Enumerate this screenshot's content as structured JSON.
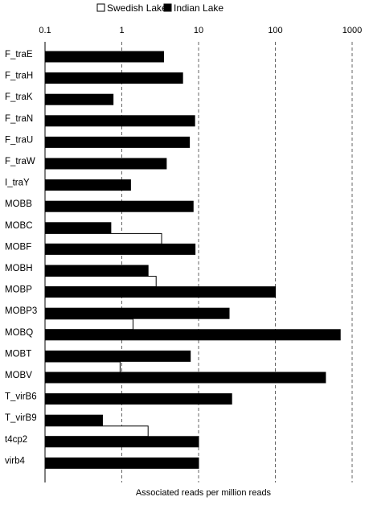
{
  "chart_data": {
    "type": "bar",
    "orientation": "horizontal",
    "xscale": "log",
    "xlim": [
      0.1,
      1000
    ],
    "xticks": [
      "0.1",
      "1",
      "10",
      "100",
      "1000"
    ],
    "xlabel": "Associated reads per million reads",
    "ylabel": "",
    "title": "",
    "grid": "vertical dashed lines at each decade",
    "legend": {
      "position": "top-center",
      "entries": [
        "Swedish Lake",
        "Indian Lake"
      ]
    },
    "categories": [
      "F_traE",
      "F_traH",
      "F_traK",
      "F_traN",
      "F_traU",
      "F_traW",
      "I_traY",
      "MOBB",
      "MOBC",
      "MOBF",
      "MOBH",
      "MOBP",
      "MOBP3",
      "MOBQ",
      "MOBT",
      "MOBV",
      "T_virB6",
      "T_virB9",
      "t4cp2",
      "virb4"
    ],
    "series": [
      {
        "name": "Swedish Lake",
        "color": "#ffffff",
        "values": [
          null,
          null,
          null,
          null,
          null,
          null,
          null,
          null,
          null,
          3.3,
          null,
          2.8,
          null,
          1.4,
          null,
          0.95,
          null,
          null,
          2.2,
          null
        ]
      },
      {
        "name": "Indian Lake",
        "color": "#000000",
        "values": [
          3.5,
          6.2,
          0.77,
          8.9,
          7.6,
          3.8,
          1.3,
          8.5,
          0.72,
          9.0,
          2.2,
          100,
          25,
          700,
          7.8,
          450,
          27,
          0.56,
          10,
          10
        ]
      }
    ]
  }
}
